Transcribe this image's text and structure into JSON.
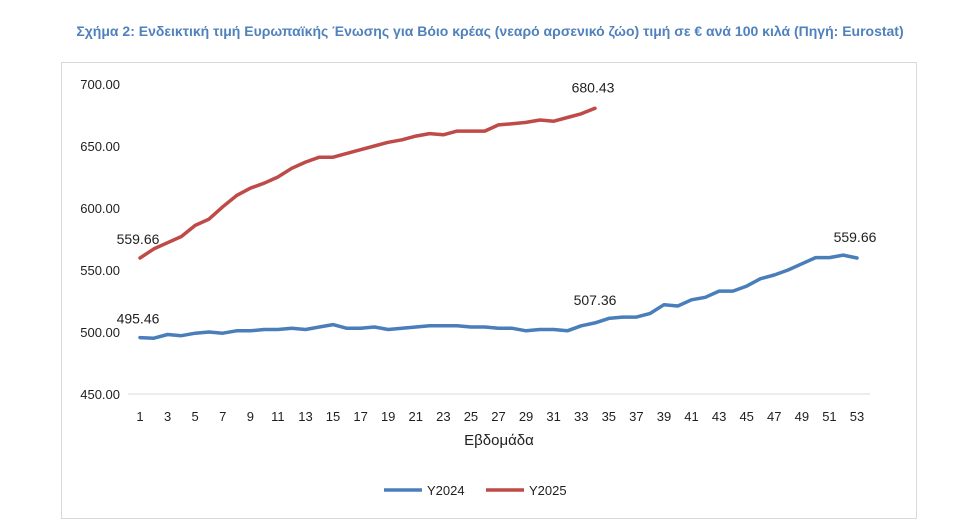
{
  "chart_data": {
    "type": "line",
    "title": "Σχήμα 2: Ενδεικτική τιμή Ευρωπαϊκής Ένωσης για Βόιο κρέας (νεαρό αρσενικό ζώο) τιμή σε € ανά 100 κιλά (Πηγή: Eurostat)",
    "xlabel": "Εβδομάδα",
    "ylabel": "",
    "ylim": [
      450,
      700
    ],
    "yticks": [
      "700.00",
      "650.00",
      "600.00",
      "550.00",
      "500.00",
      "450.00"
    ],
    "x_tick_labels": [
      "1",
      "3",
      "5",
      "7",
      "9",
      "11",
      "13",
      "15",
      "17",
      "19",
      "21",
      "23",
      "25",
      "27",
      "29",
      "31",
      "33",
      "35",
      "37",
      "39",
      "41",
      "43",
      "45",
      "47",
      "49",
      "51",
      "53"
    ],
    "grid": false,
    "legend": "bottom",
    "series": [
      {
        "name": "Y2024",
        "color": "#4a7ebb",
        "values": [
          495.46,
          495,
          498,
          497,
          499,
          500,
          499,
          501,
          501,
          502,
          502,
          503,
          502,
          504,
          506,
          503,
          503,
          504,
          502,
          503,
          504,
          505,
          505,
          505,
          504,
          504,
          503,
          503,
          501,
          502,
          502,
          501,
          505,
          507.36,
          511,
          512,
          512,
          515,
          522,
          521,
          526,
          528,
          533,
          533,
          537,
          543,
          546,
          550,
          555,
          560,
          560,
          562,
          559.66
        ]
      },
      {
        "name": "Y2025",
        "color": "#be4b48",
        "values": [
          559.66,
          567,
          572,
          577,
          586,
          591,
          601,
          610,
          616,
          620,
          625,
          632,
          637,
          641,
          641,
          644,
          647,
          650,
          653,
          655,
          658,
          660,
          659,
          662,
          662,
          662,
          667,
          668,
          669,
          671,
          670,
          673,
          676,
          680.43
        ]
      }
    ],
    "annotations": [
      {
        "series": "Y2024",
        "week": 1,
        "label": "495.46"
      },
      {
        "series": "Y2024",
        "week": 34,
        "label": "507.36"
      },
      {
        "series": "Y2024",
        "week": 53,
        "label": "559.66"
      },
      {
        "series": "Y2025",
        "week": 1,
        "label": "559.66"
      },
      {
        "series": "Y2025",
        "week": 34,
        "label": "680.43"
      }
    ]
  }
}
